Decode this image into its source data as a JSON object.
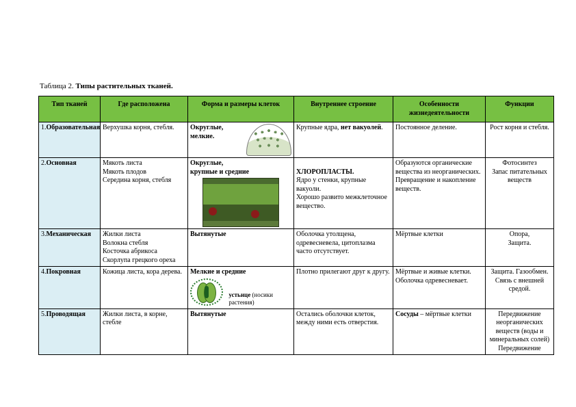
{
  "caption_prefix": "Таблица 2. ",
  "caption_bold": "Типы растительных тканей.",
  "headers": {
    "c1": "Тип тканей",
    "c2": "Где расположена",
    "c3": "Форма и размеры клеток",
    "c4": "Внутреннее строение",
    "c5": "Особенности жизнедеятельности",
    "c6": "Функции"
  },
  "rows": [
    {
      "num": "1.",
      "type": "Образовательная",
      "location": "Верхушка корня, стебля.",
      "shape_bold": "Округлые, мелкие.",
      "shape_extra": "",
      "structure_pre": "Крупные ядра, ",
      "structure_bold": "нет вакуолей",
      "structure_post": ".",
      "life": "Постоянное деление.",
      "func": "Рост корня и стебля."
    },
    {
      "num": "2.",
      "type": "Основная",
      "location": "Мякоть листа\nМякоть плодов\nСередина корня, стебля",
      "shape_bold": "Округлые,\nкрупные и средние",
      "shape_extra": "",
      "structure_pre": "",
      "structure_bold": "ХЛОРОПЛАСТЫ.",
      "structure_post": "\nЯдро у стенки, крупные вакуоли.\nХорошо развито межклеточное вещество.",
      "life": "Образуются органические вещества из неорганических. Превращение и накопление веществ.",
      "func": "Фотосинтез\nЗапас питательных веществ"
    },
    {
      "num": "3.",
      "type": "Механическая",
      "location": "Жилки листа\nВолокна стебля\nКосточка абрикоса\nСкорлупа грецкого ореха",
      "shape_bold": "Вытянутые",
      "shape_extra": "",
      "structure_pre": "Оболочка утолщена, одревесневела, цитоплазма часто отсутствует.",
      "structure_bold": "",
      "structure_post": "",
      "life": "Мёртвые клетки",
      "func": "Опора,\nЗащита."
    },
    {
      "num": "4.",
      "type": "Покровная",
      "location": "Кожица листа, кора дерева.",
      "shape_bold": "Мелкие и средние",
      "shape_extra_bold": "устьице",
      "shape_extra_plain": " (носики растения)",
      "structure_pre": "Плотно прилегают друг к другу.",
      "structure_bold": "",
      "structure_post": "",
      "life": "Мёртвые и живые клетки. Оболочка одревесневает.",
      "func": "Защита. Газообмен.\nСвязь с внешней средой."
    },
    {
      "num": "5.",
      "type": "Проводящая",
      "location": "Жилки листа, в корне, стебле",
      "shape_bold": "Вытянутые",
      "shape_extra": "",
      "structure_pre": "Остались оболочки клеток, между ними есть отверстия.",
      "structure_bold": "",
      "structure_post": "",
      "life_bold": "Сосуды",
      "life_post": " – мёртвые клетки",
      "func": "Передвижение неорганических веществ (воды и минеральных солей)\nПередвижение"
    }
  ],
  "colors": {
    "header_bg": "#77c043",
    "rowlabel_bg": "#dbeef4",
    "border": "#000000",
    "page_bg": "#ffffff"
  }
}
